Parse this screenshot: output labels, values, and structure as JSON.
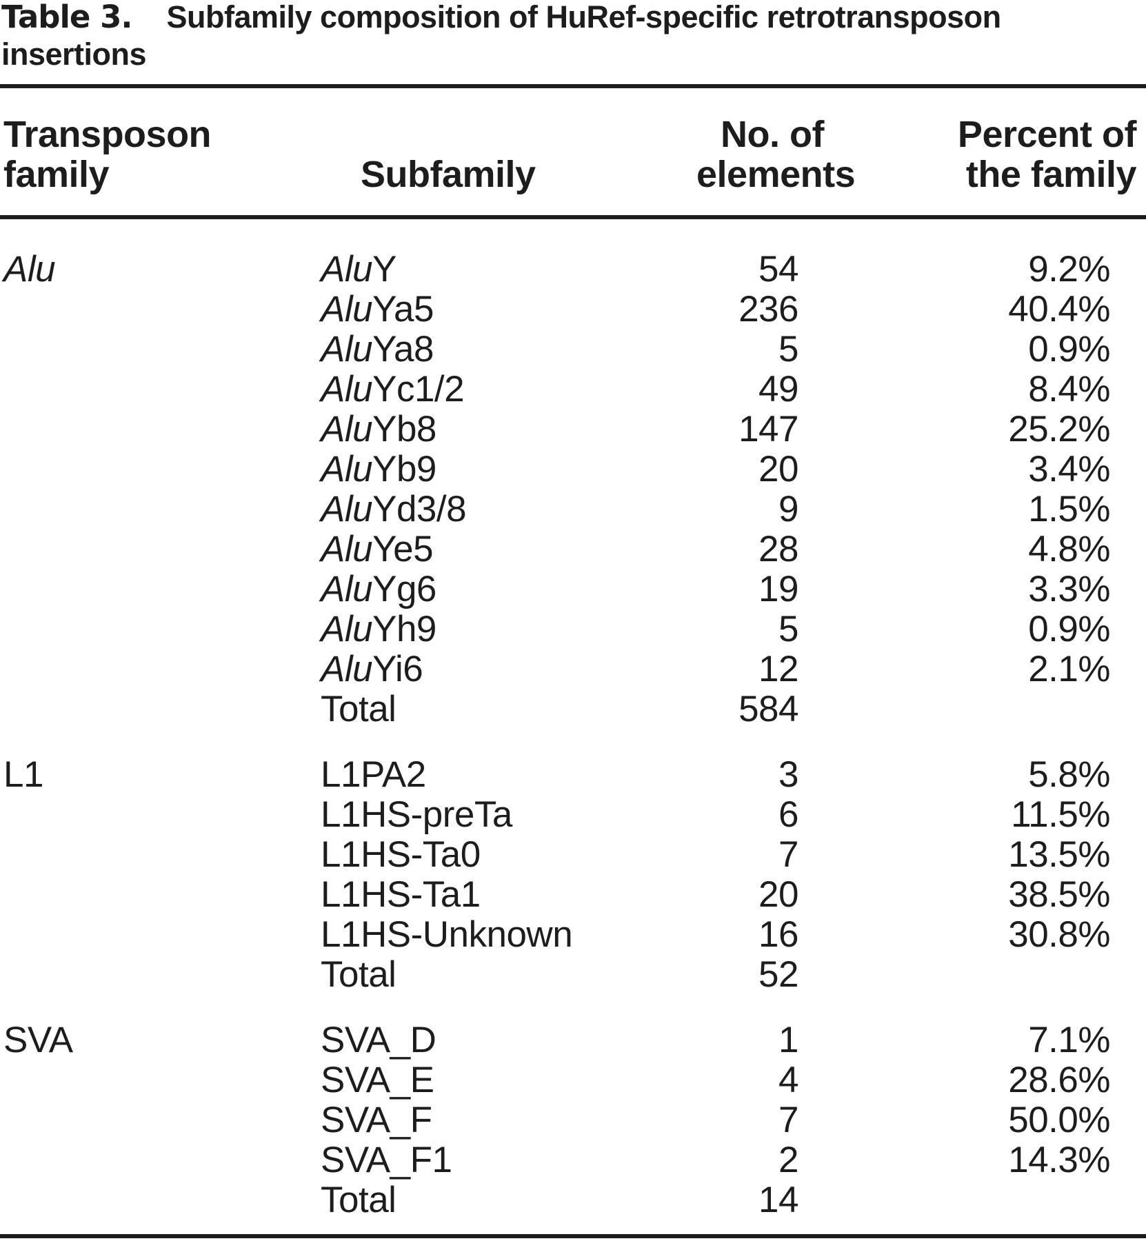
{
  "title": {
    "label": "Table 3.",
    "text": "Subfamily composition of HuRef-specific retrotransposon insertions"
  },
  "colors": {
    "background": "#ffffff",
    "text": "#1d1d1d",
    "rule": "#1d1d1d"
  },
  "table": {
    "columns": {
      "family_line1": "Transposon",
      "family_line2": "family",
      "subfamily": "Subfamily",
      "elements_line1": "No. of",
      "elements_line2": "elements",
      "percent_line1": "Percent of",
      "percent_line2": "the family"
    },
    "rows": [
      {
        "family": "Alu",
        "family_italic": true,
        "sub_em": "Alu",
        "sub": "Y",
        "count": "54",
        "pct": "9.2%"
      },
      {
        "family": "",
        "family_italic": false,
        "sub_em": "Alu",
        "sub": "Ya5",
        "count": "236",
        "pct": "40.4%"
      },
      {
        "family": "",
        "family_italic": false,
        "sub_em": "Alu",
        "sub": "Ya8",
        "count": "5",
        "pct": "0.9%"
      },
      {
        "family": "",
        "family_italic": false,
        "sub_em": "Alu",
        "sub": "Yc1/2",
        "count": "49",
        "pct": "8.4%"
      },
      {
        "family": "",
        "family_italic": false,
        "sub_em": "Alu",
        "sub": "Yb8",
        "count": "147",
        "pct": "25.2%"
      },
      {
        "family": "",
        "family_italic": false,
        "sub_em": "Alu",
        "sub": "Yb9",
        "count": "20",
        "pct": "3.4%"
      },
      {
        "family": "",
        "family_italic": false,
        "sub_em": "Alu",
        "sub": "Yd3/8",
        "count": "9",
        "pct": "1.5%"
      },
      {
        "family": "",
        "family_italic": false,
        "sub_em": "Alu",
        "sub": "Ye5",
        "count": "28",
        "pct": "4.8%"
      },
      {
        "family": "",
        "family_italic": false,
        "sub_em": "Alu",
        "sub": "Yg6",
        "count": "19",
        "pct": "3.3%"
      },
      {
        "family": "",
        "family_italic": false,
        "sub_em": "Alu",
        "sub": "Yh9",
        "count": "5",
        "pct": "0.9%"
      },
      {
        "family": "",
        "family_italic": false,
        "sub_em": "Alu",
        "sub": "Yi6",
        "count": "12",
        "pct": "2.1%"
      },
      {
        "family": "",
        "family_italic": false,
        "sub_em": "",
        "sub": "Total",
        "count": "584",
        "pct": ""
      },
      {
        "family": "L1",
        "family_italic": false,
        "sub_em": "",
        "sub": "L1PA2",
        "count": "3",
        "pct": "5.8%",
        "gap": true
      },
      {
        "family": "",
        "family_italic": false,
        "sub_em": "",
        "sub": "L1HS-preTa",
        "count": "6",
        "pct": "11.5%"
      },
      {
        "family": "",
        "family_italic": false,
        "sub_em": "",
        "sub": "L1HS-Ta0",
        "count": "7",
        "pct": "13.5%"
      },
      {
        "family": "",
        "family_italic": false,
        "sub_em": "",
        "sub": "L1HS-Ta1",
        "count": "20",
        "pct": "38.5%"
      },
      {
        "family": "",
        "family_italic": false,
        "sub_em": "",
        "sub": "L1HS-Unknown",
        "count": "16",
        "pct": "30.8%"
      },
      {
        "family": "",
        "family_italic": false,
        "sub_em": "",
        "sub": "Total",
        "count": "52",
        "pct": ""
      },
      {
        "family": "SVA",
        "family_italic": false,
        "sub_em": "",
        "sub": "SVA_D",
        "count": "1",
        "pct": "7.1%",
        "gap": true
      },
      {
        "family": "",
        "family_italic": false,
        "sub_em": "",
        "sub": "SVA_E",
        "count": "4",
        "pct": "28.6%"
      },
      {
        "family": "",
        "family_italic": false,
        "sub_em": "",
        "sub": "SVA_F",
        "count": "7",
        "pct": "50.0%"
      },
      {
        "family": "",
        "family_italic": false,
        "sub_em": "",
        "sub": "SVA_F1",
        "count": "2",
        "pct": "14.3%"
      },
      {
        "family": "",
        "family_italic": false,
        "sub_em": "",
        "sub": "Total",
        "count": "14",
        "pct": ""
      }
    ]
  }
}
